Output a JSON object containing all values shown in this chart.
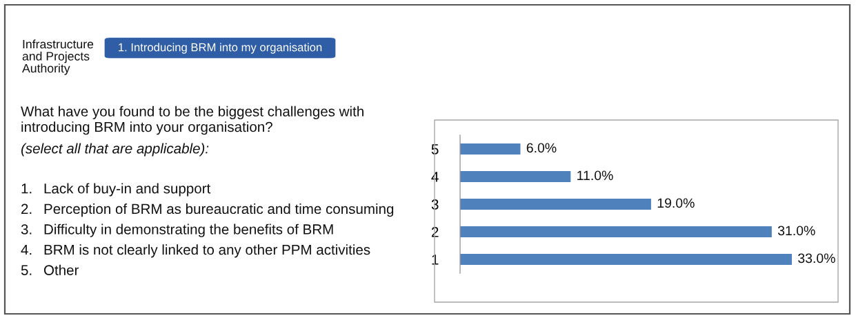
{
  "chart_data": {
    "type": "bar",
    "orientation": "horizontal",
    "title": "1. Introducing BRM into my organisation",
    "subtitle": "What have you found to be the biggest challenges with\nintroducing BRM into your organisation?",
    "categories": [
      "5",
      "4",
      "3",
      "2",
      "1"
    ],
    "values": [
      6,
      11,
      19,
      31,
      33
    ],
    "value_labels": [
      "6.0%",
      "11.0%",
      "19.0%",
      "31.0%",
      "33.0%"
    ],
    "color": "#4f81bd",
    "tick_labels": "y",
    "annotations": [
      "Infrastructure\nand Projects\nAuthority",
      "(select all that are applicable):",
      "1. Lack of buy-in and support",
      "2. Perception of BRM as bureaucratic and time consuming",
      "3. Difficulty in demonstrating the benefits of BRM",
      "4. BRM is not clearly linked to any other PPM activities",
      "5. Other"
    ]
  }
}
